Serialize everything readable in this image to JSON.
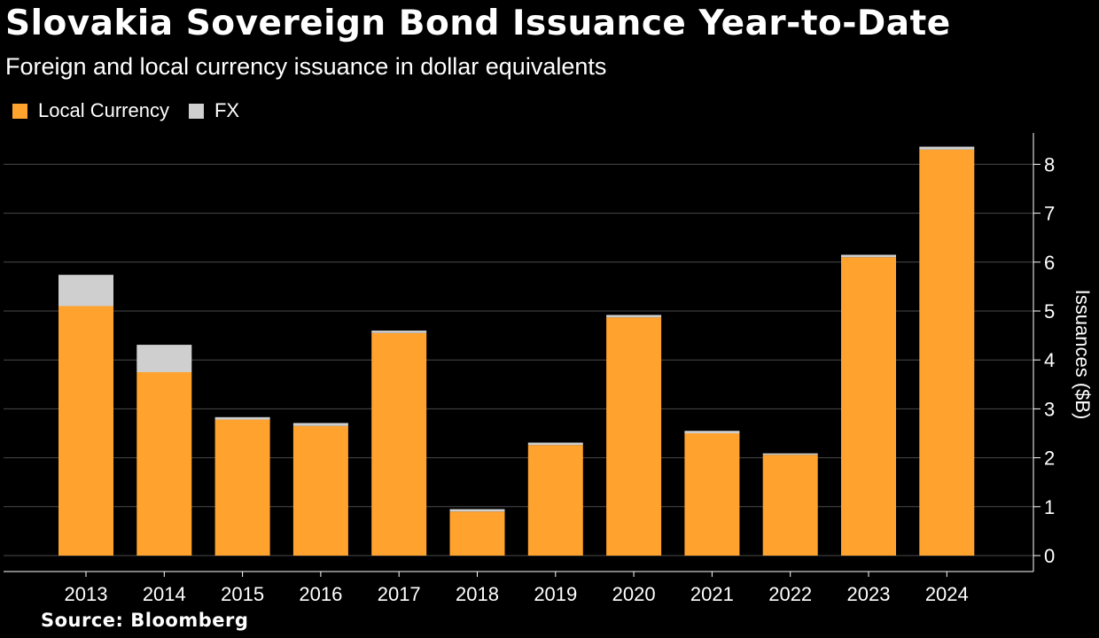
{
  "chart_data": {
    "type": "bar",
    "stacked": true,
    "title": "Slovakia Sovereign Bond Issuance Year-to-Date",
    "subtitle": "Foreign and local currency issuance in dollar equivalents",
    "categories": [
      "2013",
      "2014",
      "2015",
      "2016",
      "2017",
      "2018",
      "2019",
      "2020",
      "2021",
      "2022",
      "2023",
      "2024"
    ],
    "series": [
      {
        "name": "Local Currency",
        "color": "#ffa22e",
        "values": [
          5.1,
          3.75,
          2.78,
          2.65,
          4.55,
          0.9,
          2.26,
          4.87,
          2.5,
          2.06,
          6.1,
          8.3
        ]
      },
      {
        "name": "FX",
        "color": "#cfcfcf",
        "values": [
          0.64,
          0.56,
          0.05,
          0.06,
          0.05,
          0.05,
          0.05,
          0.05,
          0.05,
          0.03,
          0.05,
          0.06
        ]
      }
    ],
    "xlabel": "",
    "ylabel": "Issuances ($B)",
    "ylim": [
      0,
      8.7
    ],
    "yticks": [
      0,
      1,
      2,
      3,
      4,
      5,
      6,
      7,
      8
    ],
    "grid": true,
    "legend_position": "top-left",
    "source": "Source: Bloomberg"
  }
}
